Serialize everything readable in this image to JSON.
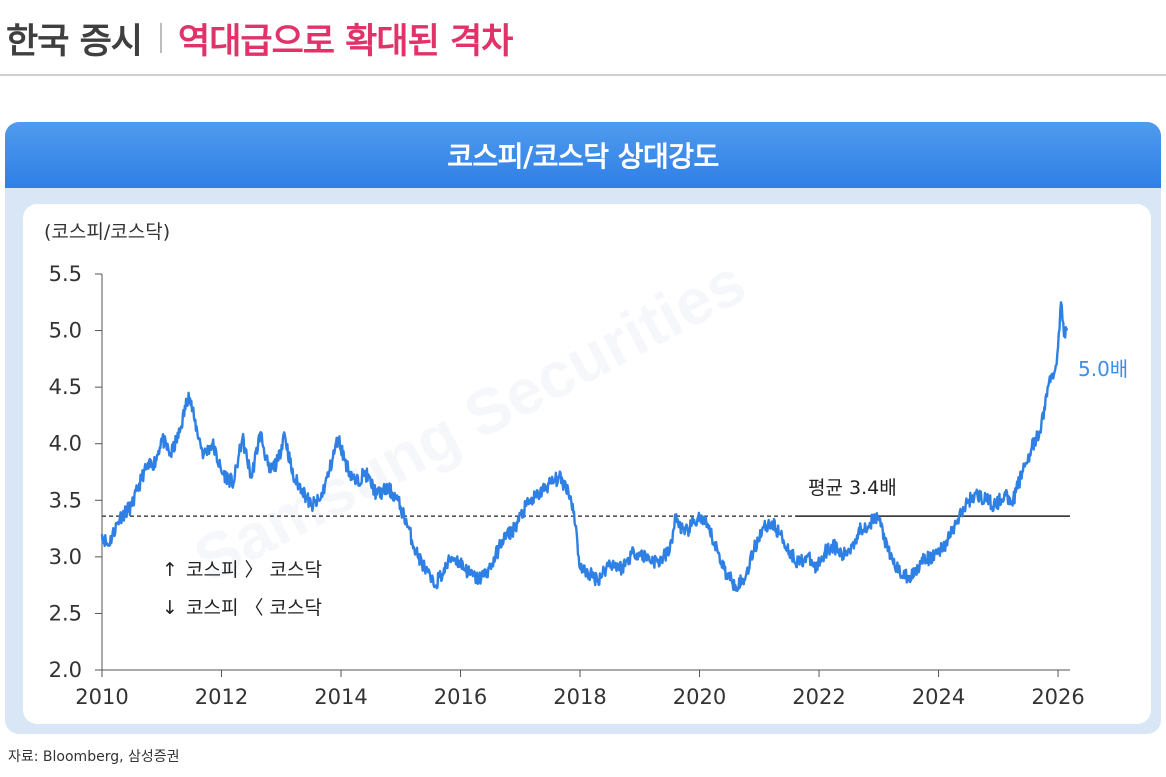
{
  "header": {
    "category": "한국 증시",
    "title": "역대급으로 확대된 격차"
  },
  "panel_title": "코스피/코스닥 상대강도",
  "source": "자료: Bloomberg, 삼성증권",
  "watermark": "Samsung Securities",
  "colors": {
    "line": "#2f80e4",
    "title_accent": "#e0336a",
    "band": "#3a88ea",
    "label_blue": "#3d8ee6"
  },
  "chart_data": {
    "type": "line",
    "ylabel": "(코스피/코스닥)",
    "ylim": [
      2.0,
      5.5
    ],
    "yticks": [
      "5.5",
      "5.0",
      "4.5",
      "4.0",
      "3.5",
      "3.0",
      "2.5",
      "2.0"
    ],
    "xlim": [
      2010.0,
      2026.2
    ],
    "xticks": [
      "2010",
      "2012",
      "2014",
      "2016",
      "2018",
      "2020",
      "2022",
      "2024",
      "2026"
    ],
    "average": {
      "value": 3.36,
      "label": "평균 3.4배"
    },
    "end_label": "5.0배",
    "legend": {
      "up": "코스피 〉 코스닥",
      "down": "코스피 〈 코스닥"
    },
    "series": [
      {
        "x": [
          2010.0,
          2010.1,
          2010.3,
          2010.5,
          2010.7,
          2010.9,
          2011.0,
          2011.15,
          2011.3,
          2011.45,
          2011.55,
          2011.7,
          2011.85,
          2012.0,
          2012.2,
          2012.35,
          2012.5,
          2012.65,
          2012.8,
          2012.95,
          2013.05,
          2013.2,
          2013.35,
          2013.5,
          2013.65,
          2013.8,
          2013.95,
          2014.1,
          2014.25,
          2014.4,
          2014.6,
          2014.8,
          2014.95,
          2015.1,
          2015.25,
          2015.4,
          2015.55,
          2015.7,
          2015.85,
          2016.0,
          2016.15,
          2016.3,
          2016.5,
          2016.7,
          2016.9,
          2017.1,
          2017.3,
          2017.5,
          2017.65,
          2017.8,
          2017.9,
          2018.0,
          2018.15,
          2018.3,
          2018.5,
          2018.7,
          2018.9,
          2019.1,
          2019.3,
          2019.5,
          2019.6,
          2019.75,
          2019.9,
          2020.0,
          2020.15,
          2020.3,
          2020.45,
          2020.6,
          2020.75,
          2020.9,
          2021.05,
          2021.2,
          2021.35,
          2021.5,
          2021.65,
          2021.8,
          2021.95,
          2022.1,
          2022.25,
          2022.4,
          2022.55,
          2022.7,
          2022.85,
          2023.0,
          2023.15,
          2023.3,
          2023.5,
          2023.7,
          2023.9,
          2024.1,
          2024.3,
          2024.5,
          2024.65,
          2024.8,
          2024.95,
          2025.1,
          2025.25,
          2025.4,
          2025.55,
          2025.7,
          2025.85,
          2025.95,
          2026.0,
          2026.05,
          2026.1,
          2026.15
        ],
        "y": [
          3.2,
          3.1,
          3.35,
          3.45,
          3.75,
          3.85,
          4.05,
          3.9,
          4.1,
          4.45,
          4.2,
          3.9,
          4.0,
          3.75,
          3.65,
          4.05,
          3.7,
          4.1,
          3.75,
          3.85,
          4.1,
          3.7,
          3.6,
          3.45,
          3.5,
          3.75,
          4.05,
          3.8,
          3.65,
          3.75,
          3.55,
          3.6,
          3.5,
          3.3,
          3.05,
          2.9,
          2.75,
          2.85,
          3.0,
          2.95,
          2.85,
          2.8,
          2.9,
          3.15,
          3.25,
          3.45,
          3.55,
          3.65,
          3.7,
          3.6,
          3.4,
          2.9,
          2.85,
          2.8,
          2.95,
          2.9,
          3.05,
          3.0,
          2.95,
          3.05,
          3.35,
          3.2,
          3.3,
          3.35,
          3.25,
          3.05,
          2.85,
          2.75,
          2.8,
          3.05,
          3.25,
          3.3,
          3.2,
          3.05,
          2.95,
          3.0,
          2.9,
          3.05,
          3.1,
          3.0,
          3.1,
          3.25,
          3.3,
          3.35,
          3.05,
          2.9,
          2.8,
          2.95,
          3.0,
          3.1,
          3.3,
          3.5,
          3.55,
          3.5,
          3.45,
          3.55,
          3.5,
          3.75,
          3.95,
          4.1,
          4.55,
          4.65,
          4.85,
          5.25,
          4.95,
          5.0
        ]
      }
    ]
  }
}
